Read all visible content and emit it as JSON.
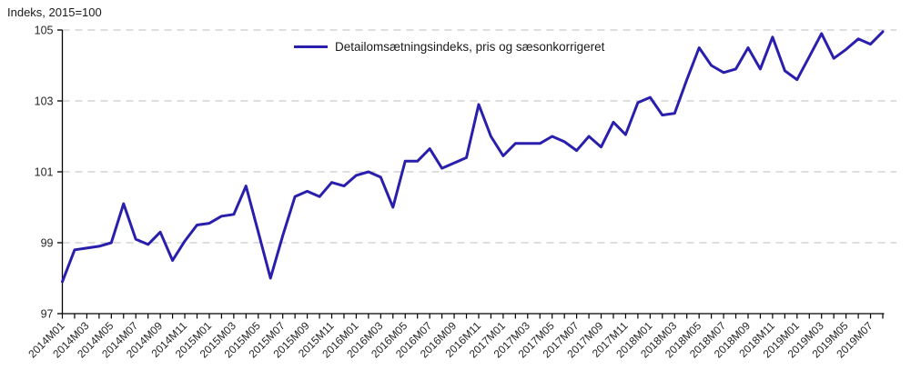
{
  "chart": {
    "title": "Indeks, 2015=100",
    "legend_label": "Detailomsætningsindeks, pris og sæsonkorrigeret",
    "colors": {
      "line": "#2a1fad",
      "grid": "#c9c9c9",
      "axis": "#000000",
      "tick_text": "#262626"
    }
  },
  "chart_data": {
    "type": "line",
    "title": "Indeks, 2015=100",
    "legend_position": "top-center",
    "grid": "horizontal-dashed",
    "ylim": [
      97,
      105
    ],
    "yticks": [
      97,
      99,
      101,
      103,
      105
    ],
    "x_label_every": 2,
    "x": [
      "2014M01",
      "2014M02",
      "2014M03",
      "2014M04",
      "2014M05",
      "2014M06",
      "2014M07",
      "2014M08",
      "2014M09",
      "2014M10",
      "2014M11",
      "2014M12",
      "2015M01",
      "2015M02",
      "2015M03",
      "2015M04",
      "2015M05",
      "2015M06",
      "2015M07",
      "2015M08",
      "2015M09",
      "2015M10",
      "2015M11",
      "2015M12",
      "2016M01",
      "2016M02",
      "2016M03",
      "2016M04",
      "2016M05",
      "2016M06",
      "2016M07",
      "2016M08",
      "2016M09",
      "2016M10",
      "2016M11",
      "2016M12",
      "2017M01",
      "2017M02",
      "2017M03",
      "2017M04",
      "2017M05",
      "2017M06",
      "2017M07",
      "2017M08",
      "2017M09",
      "2017M10",
      "2017M11",
      "2017M12",
      "2018M01",
      "2018M02",
      "2018M03",
      "2018M04",
      "2018M05",
      "2018M06",
      "2018M07",
      "2018M08",
      "2018M09",
      "2018M10",
      "2018M11",
      "2018M12",
      "2019M01",
      "2019M02",
      "2019M03",
      "2019M04",
      "2019M05",
      "2019M06",
      "2019M07",
      "2019M08"
    ],
    "series": [
      {
        "name": "Detailomsætningsindeks, pris og sæsonkorrigeret",
        "values": [
          97.9,
          98.8,
          98.85,
          98.9,
          99.0,
          100.1,
          99.1,
          98.95,
          99.3,
          98.5,
          99.05,
          99.5,
          99.55,
          99.75,
          99.8,
          100.6,
          99.3,
          98.0,
          99.2,
          100.3,
          100.45,
          100.3,
          100.7,
          100.6,
          100.9,
          101.0,
          100.85,
          100.0,
          101.3,
          101.3,
          101.65,
          101.1,
          101.25,
          101.4,
          102.9,
          102.0,
          101.45,
          101.8,
          101.8,
          101.8,
          102.0,
          101.85,
          101.6,
          102.0,
          101.7,
          102.4,
          102.05,
          102.95,
          103.1,
          102.6,
          102.65,
          103.6,
          104.5,
          104.0,
          103.8,
          103.9,
          104.5,
          103.9,
          104.8,
          103.85,
          103.6,
          104.25,
          104.9,
          104.2,
          104.45,
          104.75,
          104.6,
          104.95
        ]
      }
    ]
  }
}
